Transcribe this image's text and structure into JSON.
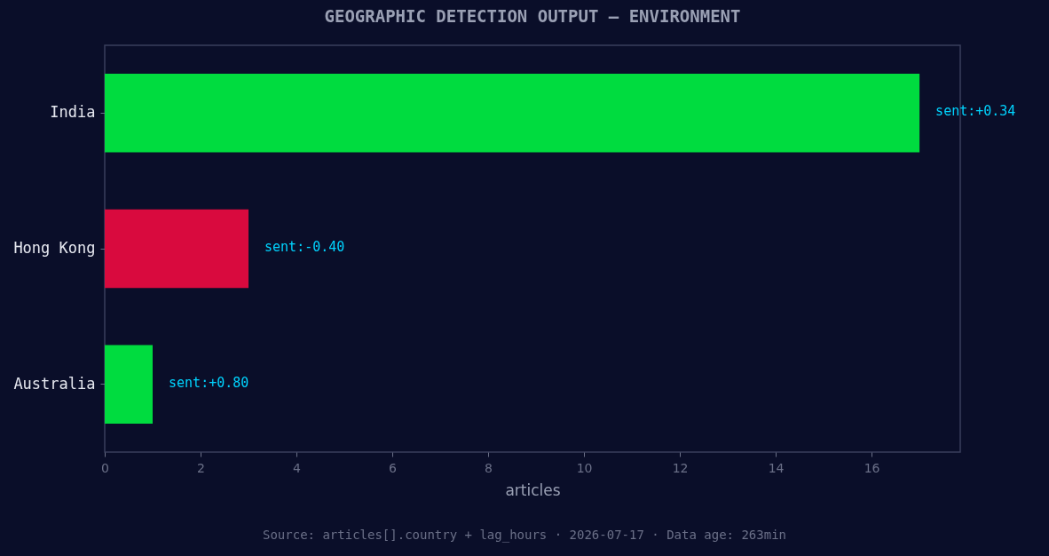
{
  "chart_data": {
    "type": "bar",
    "orientation": "horizontal",
    "title": "GEOGRAPHIC DETECTION OUTPUT — ENVIRONMENT",
    "xlabel": "articles",
    "categories": [
      "India",
      "Hong Kong",
      "Australia"
    ],
    "values": [
      17,
      3,
      1
    ],
    "colors": [
      "#00dc3f",
      "#d90a3e",
      "#00dc3f"
    ],
    "xlim": [
      0,
      17.85
    ],
    "xticks": [
      0,
      2,
      4,
      6,
      8,
      10,
      12,
      14,
      16
    ],
    "grid": false,
    "annotations": [
      {
        "text": "sent:+0.34",
        "x": 17,
        "y": "India"
      },
      {
        "text": "sent:-0.40",
        "x": 3,
        "y": "Hong Kong"
      },
      {
        "text": "sent:+0.80",
        "x": 1,
        "y": "Australia"
      },
      "Source: articles[].country + lag_hours · 2026-07-17 · Data age: 263min"
    ]
  }
}
